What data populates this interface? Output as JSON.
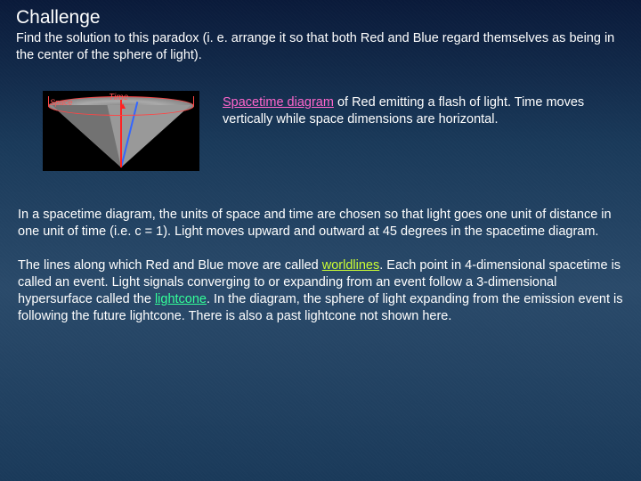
{
  "title": "Challenge",
  "intro": "Find the solution to this paradox (i. e. arrange it so that both Red and Blue regard themselves as being in the center of the sphere of light).",
  "figure": {
    "label_space": "Space",
    "label_time": "Time",
    "ellipse_border": "#ff4444",
    "red_line": "#ff2222",
    "blue_line": "#3366ff",
    "cone_fill": "#999999",
    "bg": "#000000"
  },
  "caption": {
    "link": "Spacetime diagram",
    "rest": " of Red emitting a flash of light.  Time moves vertically while space dimensions are horizontal."
  },
  "para1": "In a spacetime diagram, the units of space and time are chosen so that light goes one unit of distance in one unit of time (i.e. c = 1). Light moves upward and outward at 45 degrees in the spacetime diagram.",
  "para2": {
    "t1": "The lines along which Red and Blue move are called ",
    "worldlines": "worldlines",
    "t2": ". Each point in 4-dimensional spacetime is called an event. Light signals converging to or expanding from an event follow a 3-dimensional hypersurface called the ",
    "lightcone": "lightcone",
    "t3": ". In the diagram, the sphere of light expanding from the emission event is following the future lightcone. There is also a past lightcone not shown here."
  },
  "colors": {
    "link_pink": "#ff66cc",
    "link_lime": "#ccff33",
    "link_teal": "#33ff99",
    "text": "#ffffff",
    "bg_gradient_top": "#0a1a3a",
    "bg_gradient_mid": "#2a4a6a"
  },
  "typography": {
    "title_fontsize": 21,
    "body_fontsize": 14.5,
    "font_family": "Verdana"
  }
}
